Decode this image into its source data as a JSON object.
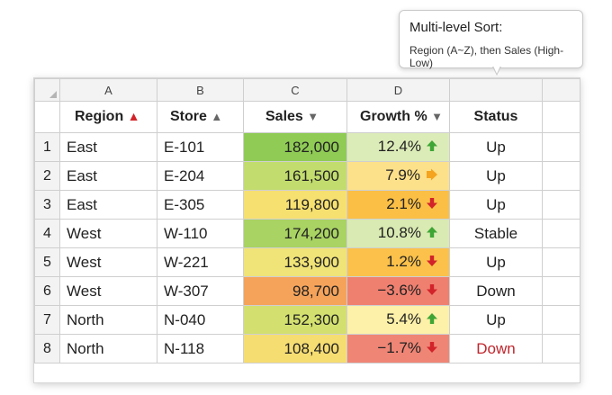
{
  "tooltip": {
    "title": "Multi-level Sort:",
    "body": "Region (A~Z), then Sales (High-Low)"
  },
  "columns": [
    "A",
    "B",
    "C",
    "D",
    ""
  ],
  "headers": {
    "region": "Region",
    "store": "Store",
    "sales": "Sales",
    "growth": "Growth %",
    "status": "Status"
  },
  "header_icons": {
    "region": "sort-up-red-arrow-icon",
    "store": "sort-up-gray-arrow-icon",
    "sales": "sort-down-triangle-icon",
    "growth": "sort-down-triangle-icon"
  },
  "rows": [
    {
      "num": "1",
      "region": "East",
      "store": "E-101",
      "sales": "182,000",
      "growth": "12.4%",
      "trend": "up-green-arrow-icon",
      "status": "Up",
      "status_color": "#222222",
      "sales_color": "#8fcb55",
      "growth_color": "#dcecb8"
    },
    {
      "num": "2",
      "region": "East",
      "store": "E-204",
      "sales": "161,500",
      "growth": "7.9%",
      "trend": "right-orange-arrow-icon",
      "status": "Up",
      "status_color": "#222222",
      "sales_color": "#c2dc6e",
      "growth_color": "#fde08a"
    },
    {
      "num": "3",
      "region": "East",
      "store": "E-305",
      "sales": "119,800",
      "growth": "2.1%",
      "trend": "down-red-arrow-icon",
      "status": "Up",
      "status_color": "#222222",
      "sales_color": "#f6e070",
      "growth_color": "#fbbf45"
    },
    {
      "num": "4",
      "region": "West",
      "store": "W-110",
      "sales": "174,200",
      "growth": "10.8%",
      "trend": "up-green-arrow-icon",
      "status": "Stable",
      "status_color": "#222222",
      "sales_color": "#a9d362",
      "growth_color": "#d9eab2"
    },
    {
      "num": "5",
      "region": "West",
      "store": "W-221",
      "sales": "133,900",
      "growth": "1.2%",
      "trend": "down-red-arrow-icon",
      "status": "Up",
      "status_color": "#222222",
      "sales_color": "#f0e377",
      "growth_color": "#fbc14a"
    },
    {
      "num": "6",
      "region": "West",
      "store": "W-307",
      "sales": "98,700",
      "growth": "−3.6%",
      "trend": "down-red-arrow-icon",
      "status": "Down",
      "status_color": "#222222",
      "sales_color": "#f5a35a",
      "growth_color": "#ef8070"
    },
    {
      "num": "7",
      "region": "North",
      "store": "N-040",
      "sales": "152,300",
      "growth": "5.4%",
      "trend": "up-green-arrow-icon",
      "status": "Up",
      "status_color": "#222222",
      "sales_color": "#d3e06f",
      "growth_color": "#fdf0a8"
    },
    {
      "num": "8",
      "region": "North",
      "store": "N-118",
      "sales": "108,400",
      "growth": "−1.7%",
      "trend": "down-red-arrow-icon",
      "status": "Down",
      "status_color": "#c0262d",
      "sales_color": "#f6dd72",
      "growth_color": "#ef8575"
    }
  ],
  "icon_colors": {
    "up": "#3fa535",
    "down": "#d2232a",
    "right": "#f4a41f"
  }
}
